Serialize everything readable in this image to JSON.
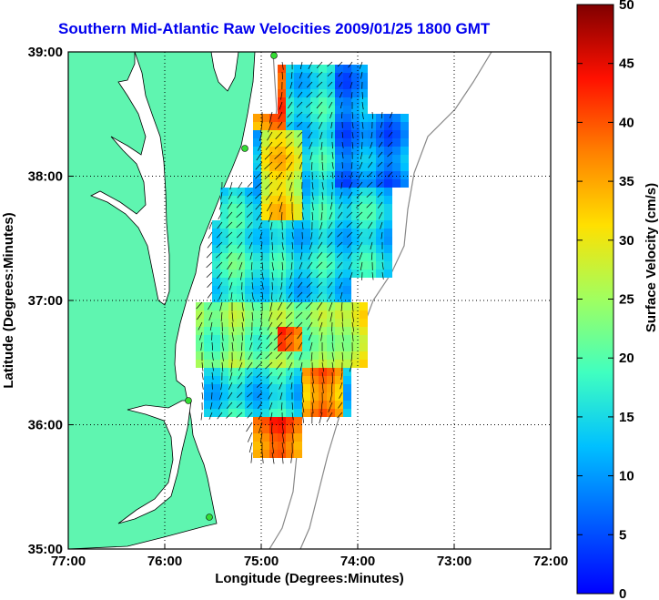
{
  "title": "Southern Mid-Atlantic Raw Velocities 2009/01/25 1800 GMT",
  "x_axis": {
    "label": "Longitude (Degrees:Minutes)",
    "ticks": [
      "77:00",
      "76:00",
      "75:00",
      "74:00",
      "73:00",
      "72:00"
    ],
    "values": [
      -77,
      -76,
      -75,
      -74,
      -73,
      -72
    ]
  },
  "y_axis": {
    "label": "Latitude (Degrees:Minutes)",
    "ticks": [
      "39:00",
      "38:00",
      "37:00",
      "36:00",
      "35:00"
    ],
    "values": [
      39,
      38,
      37,
      36,
      35
    ]
  },
  "colorbar": {
    "label": "Surface Velocity (cm/s)",
    "ticks": [
      "50",
      "45",
      "40",
      "35",
      "30",
      "25",
      "20",
      "15",
      "10",
      "5",
      "0"
    ],
    "range": [
      0,
      50
    ]
  },
  "colors": {
    "land": "#5ff5b0",
    "title": "#0000ee",
    "station": "#33dd33"
  }
}
